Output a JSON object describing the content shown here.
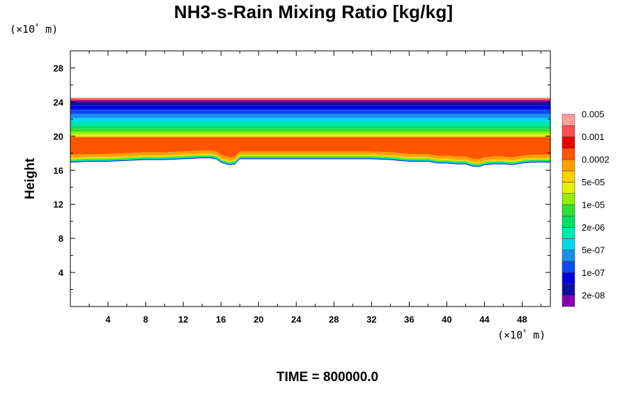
{
  "chart_data": {
    "type": "contour",
    "title": "NH3-s-Rain Mixing Ratio [kg/kg]",
    "ylabel": "Height",
    "xlabel": "",
    "x_unit": "(×10⁴ m)",
    "y_unit": "(×10⁴ m)",
    "xlim": [
      0,
      51
    ],
    "ylim": [
      0,
      30
    ],
    "x_ticks": [
      4,
      8,
      12,
      16,
      20,
      24,
      28,
      32,
      36,
      40,
      44,
      48
    ],
    "y_ticks": [
      4,
      8,
      12,
      16,
      20,
      24,
      28
    ],
    "time_label": "TIME = 800000.0",
    "colorbar": {
      "colors": [
        "#8800aa",
        "#1010a0",
        "#0000e0",
        "#0a4cf0",
        "#1890f0",
        "#00d8f0",
        "#00e8b0",
        "#00e060",
        "#30e030",
        "#90f000",
        "#e8f000",
        "#ffd000",
        "#ffa000",
        "#ff5500",
        "#ee0000",
        "#ff5050",
        "#ff9d9d"
      ],
      "labels": [
        "2e-08",
        "1e-07",
        "5e-07",
        "2e-06",
        "1e-05",
        "5e-05",
        "0.0002",
        "0.001",
        "0.005"
      ]
    },
    "layer": {
      "top_height": 24.5,
      "x": [
        0,
        2,
        4,
        6,
        8,
        10,
        12,
        14,
        15,
        15.5,
        16,
        16.5,
        17,
        17.5,
        18,
        20,
        24,
        28,
        32,
        34,
        36,
        38,
        39,
        40,
        41,
        42,
        42.5,
        43,
        43.5,
        44,
        45,
        46,
        47,
        48,
        49,
        50,
        51
      ],
      "bottom_height": [
        16.9,
        17.0,
        17.0,
        17.1,
        17.2,
        17.2,
        17.3,
        17.4,
        17.4,
        17.3,
        16.9,
        16.7,
        16.6,
        16.7,
        17.3,
        17.3,
        17.3,
        17.3,
        17.3,
        17.2,
        17.0,
        17.0,
        16.8,
        16.8,
        16.7,
        16.7,
        16.5,
        16.4,
        16.4,
        16.6,
        16.7,
        16.7,
        16.6,
        16.8,
        16.9,
        16.9,
        16.9
      ],
      "bands": [
        {
          "level": 17,
          "top": 24.5
        },
        {
          "level": 16,
          "top": 24.4
        },
        {
          "level": 1,
          "top": 24.2
        },
        {
          "level": 2,
          "top": 24.0
        },
        {
          "level": 3,
          "top": 23.6
        },
        {
          "level": 4,
          "top": 23.1
        },
        {
          "level": 5,
          "top": 22.6
        },
        {
          "level": 6,
          "top": 22.1
        },
        {
          "level": 7,
          "top": 21.7
        },
        {
          "level": 8,
          "top": 21.2
        },
        {
          "level": 9,
          "top": 20.9
        },
        {
          "level": 10,
          "top": 20.5
        },
        {
          "level": 11,
          "top": 20.2
        }
      ],
      "orange_top_offset": 3.0
    }
  }
}
